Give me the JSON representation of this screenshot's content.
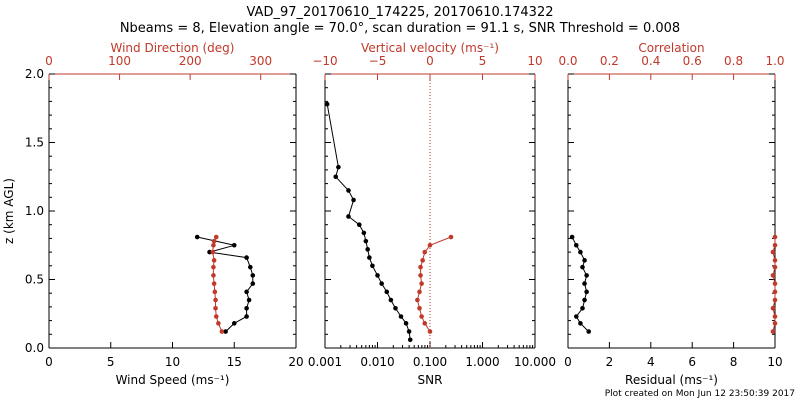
{
  "title": "VAD_97_20170610_174225, 20170610.174322",
  "subtitle": "Nbeams = 8, Elevation angle = 70.0°, scan duration = 91.1 s, SNR Threshold = 0.008",
  "footer": "Plot created on Mon Jun 12 23:50:39 2017",
  "colors": {
    "primary": "#000000",
    "secondary": "#c0392b"
  },
  "ylabel": "z (km AGL)",
  "chart_data": [
    {
      "type": "line",
      "panel": "wind",
      "ylim": [
        0,
        2
      ],
      "yticks": [
        "0.0",
        "0.5",
        "1.0",
        "1.5",
        "2.0"
      ],
      "xlabel_bottom": "Wind Speed (ms⁻¹)",
      "xlim_bottom": [
        0,
        20
      ],
      "xticks_bottom": [
        "0",
        "5",
        "10",
        "15",
        "20"
      ],
      "xlabel_top": "Wind Direction (deg)",
      "xlim_top": [
        0,
        350
      ],
      "xticks_top": [
        "0",
        "100",
        "200",
        "300"
      ],
      "xtick_values_top": [
        0,
        100,
        200,
        300
      ],
      "series": [
        {
          "axis": "bottom",
          "color": "#000000",
          "x": [
            14.3,
            15.0,
            16.0,
            16.0,
            16.2,
            16.0,
            16.5,
            16.5,
            16.3,
            16.0,
            13.0,
            15.0,
            12.0
          ],
          "y": [
            0.12,
            0.18,
            0.23,
            0.29,
            0.35,
            0.41,
            0.47,
            0.53,
            0.59,
            0.66,
            0.7,
            0.75,
            0.81
          ]
        },
        {
          "axis": "top",
          "color": "#c0392b",
          "x": [
            245,
            240,
            237,
            236,
            236,
            235,
            234,
            233,
            233,
            234,
            232,
            233,
            234,
            237
          ],
          "y": [
            0.12,
            0.18,
            0.23,
            0.29,
            0.35,
            0.41,
            0.47,
            0.53,
            0.59,
            0.64,
            0.7,
            0.75,
            0.78,
            0.81
          ]
        }
      ]
    },
    {
      "type": "line",
      "panel": "vertical",
      "xscale_bottom": "log",
      "xlabel_bottom": "SNR",
      "xlim_bottom": [
        0.001,
        10
      ],
      "xticks_bottom": [
        "0.001",
        "0.010",
        "0.100",
        "1.000",
        "10.000"
      ],
      "xlabel_top": "Vertical velocity (ms⁻¹)",
      "xlim_top": [
        -10,
        10
      ],
      "xticks_top": [
        "−10",
        "−5",
        "0",
        "5",
        "10"
      ],
      "xtick_values_top": [
        -10,
        -5,
        0,
        5,
        10
      ],
      "reference_line": 0,
      "series": [
        {
          "axis": "bottom",
          "color": "#000000",
          "x": [
            0.0011,
            0.0018,
            0.0016,
            0.0028,
            0.0035,
            0.0028,
            0.0045,
            0.0055,
            0.006,
            0.0065,
            0.007,
            0.008,
            0.01,
            0.012,
            0.015,
            0.018,
            0.022,
            0.028,
            0.035,
            0.04,
            0.042
          ],
          "y": [
            1.78,
            1.32,
            1.25,
            1.15,
            1.08,
            0.96,
            0.9,
            0.84,
            0.78,
            0.72,
            0.66,
            0.6,
            0.53,
            0.47,
            0.41,
            0.35,
            0.29,
            0.23,
            0.18,
            0.12,
            0.06
          ]
        },
        {
          "axis": "top",
          "color": "#c0392b",
          "x": [
            0.0,
            -0.5,
            -0.8,
            -1.0,
            -1.2,
            -1.0,
            -0.8,
            -0.9,
            -0.9,
            -0.7,
            -0.5,
            0.0,
            2.0
          ],
          "y": [
            0.12,
            0.18,
            0.23,
            0.29,
            0.35,
            0.41,
            0.47,
            0.53,
            0.59,
            0.64,
            0.7,
            0.75,
            0.81
          ]
        }
      ]
    },
    {
      "type": "line",
      "panel": "residual",
      "xlabel_bottom": "Residual (ms⁻¹)",
      "xlim_bottom": [
        0,
        10
      ],
      "xticks_bottom": [
        "0",
        "2",
        "4",
        "6",
        "8",
        "10"
      ],
      "xlabel_top": "Correlation",
      "xlim_top": [
        0,
        1
      ],
      "xticks_top": [
        "0.0",
        "0.2",
        "0.4",
        "0.6",
        "0.8",
        "1.0"
      ],
      "xtick_values_top": [
        0,
        0.2,
        0.4,
        0.6,
        0.8,
        1.0
      ],
      "series": [
        {
          "axis": "bottom",
          "color": "#000000",
          "x": [
            1.0,
            0.6,
            0.4,
            0.7,
            0.8,
            0.9,
            0.8,
            0.9,
            0.7,
            0.8,
            0.6,
            0.4,
            0.2
          ],
          "y": [
            0.12,
            0.18,
            0.23,
            0.29,
            0.35,
            0.41,
            0.47,
            0.53,
            0.59,
            0.64,
            0.7,
            0.75,
            0.81
          ]
        },
        {
          "axis": "top",
          "color": "#c0392b",
          "x": [
            0.99,
            1.0,
            1.0,
            0.99,
            1.0,
            1.0,
            1.0,
            0.99,
            1.0,
            1.0,
            0.99,
            1.0,
            1.0
          ],
          "y": [
            0.12,
            0.18,
            0.23,
            0.29,
            0.35,
            0.41,
            0.47,
            0.53,
            0.59,
            0.64,
            0.7,
            0.75,
            0.81
          ]
        }
      ]
    }
  ]
}
